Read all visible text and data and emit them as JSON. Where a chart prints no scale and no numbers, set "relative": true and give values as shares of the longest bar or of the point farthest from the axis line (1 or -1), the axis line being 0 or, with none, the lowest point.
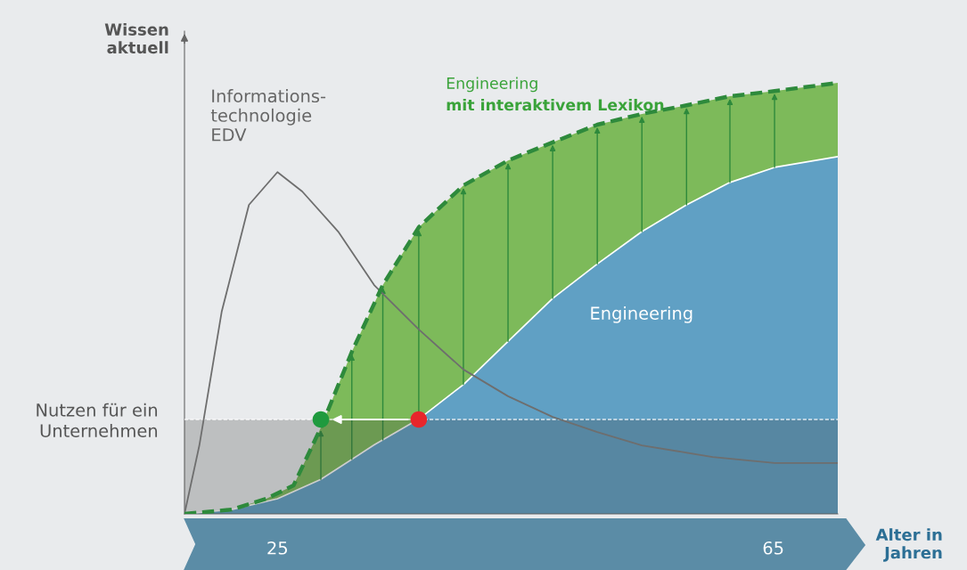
{
  "chart_data": {
    "type": "area",
    "relative": true,
    "xlabel": "Alter in\nJahren",
    "ylabel": "Wissen\naktuell",
    "xlim": [
      17.5,
      70.2
    ],
    "xticks": [
      25,
      65
    ],
    "legend": false,
    "grid": false,
    "series": [
      {
        "name": "Engineering\nmit interaktivem Lexikon",
        "color": "#7dba5a",
        "line_style": "dashed",
        "x": [
          17.5,
          21.3,
          24.1,
          26.3,
          28.5,
          31,
          33.5,
          36.4,
          40,
          43.6,
          47.2,
          50.8,
          54.4,
          58,
          61.5,
          65.1,
          70.2
        ],
        "values": [
          0,
          0.01,
          0.035,
          0.066,
          0.2,
          0.376,
          0.531,
          0.665,
          0.762,
          0.82,
          0.862,
          0.903,
          0.928,
          0.948,
          0.969,
          0.981,
          1
        ]
      },
      {
        "name": "Engineering",
        "color": "#60a0c4",
        "x": [
          17.5,
          21.3,
          25,
          28.5,
          32.8,
          36.4,
          40,
          43.6,
          47.2,
          50.8,
          54.4,
          58,
          61.5,
          65.1,
          70.2
        ],
        "values": [
          0,
          0.01,
          0.035,
          0.08,
          0.16,
          0.22,
          0.3,
          0.4,
          0.5,
          0.58,
          0.655,
          0.717,
          0.769,
          0.804,
          0.829
        ]
      },
      {
        "name": "Informations-\ntechnologie\nEDV",
        "type": "line",
        "color": "#6e6e6e",
        "x": [
          17.5,
          18.7,
          20.5,
          22.7,
          25,
          27,
          29.9,
          32.8,
          36.4,
          40,
          43.6,
          47.2,
          50.8,
          54.4,
          60.1,
          65.1,
          70.2
        ],
        "values": [
          0,
          0.159,
          0.469,
          0.717,
          0.793,
          0.748,
          0.655,
          0.531,
          0.428,
          0.335,
          0.273,
          0.225,
          0.19,
          0.159,
          0.132,
          0.118,
          0.118
        ]
      },
      {
        "type": "scatter",
        "x": [
          28.5,
          36.4
        ],
        "values": [
          0.219,
          0.219
        ],
        "colors": [
          "#1f9a3e",
          "#e8262b"
        ]
      }
    ],
    "ref_lines": [
      {
        "axis": "y",
        "value": 0.219,
        "color": "#ffffff",
        "line_style": "dashed"
      }
    ],
    "bands": [
      {
        "axis": "y",
        "from": 0,
        "to": 0.219,
        "label": "Nutzen für ein Unternehmen",
        "color": "#3c3c3c"
      }
    ]
  }
}
